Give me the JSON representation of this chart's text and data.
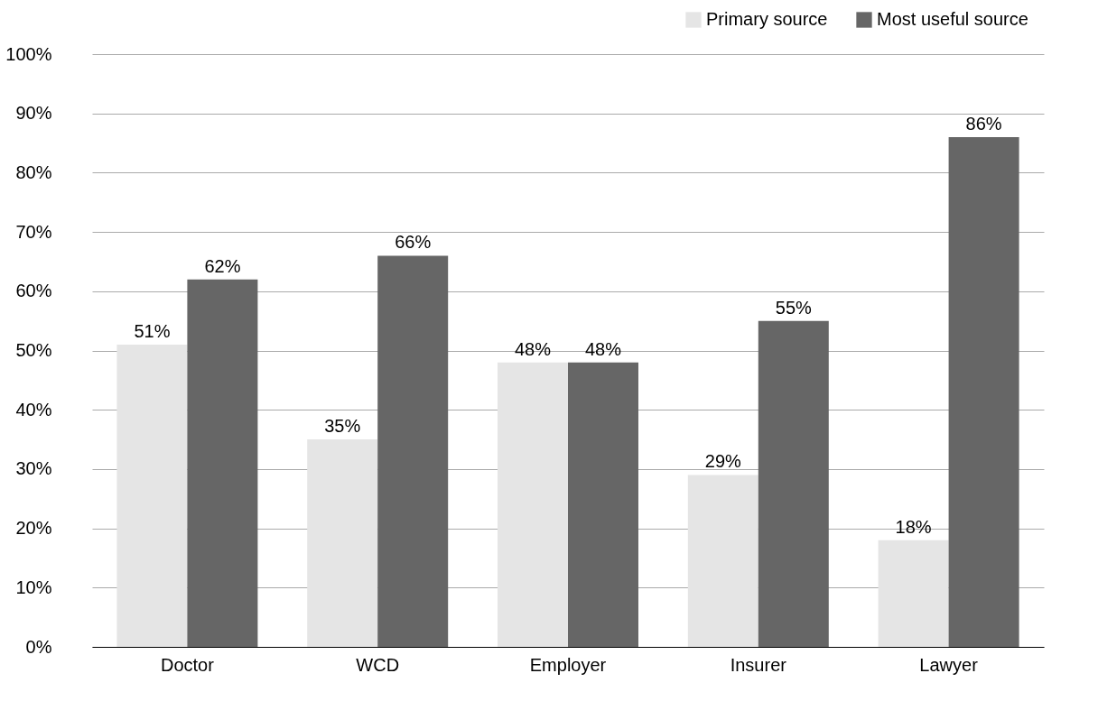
{
  "chart_data": {
    "type": "bar",
    "categories": [
      "Doctor",
      "WCD",
      "Employer",
      "Insurer",
      "Lawyer"
    ],
    "series": [
      {
        "name": "Primary source",
        "color": "#e5e5e5",
        "values": [
          51,
          35,
          48,
          29,
          18
        ],
        "value_labels": [
          "51%",
          "35%",
          "48%",
          "29%",
          "18%"
        ]
      },
      {
        "name": "Most useful source",
        "color": "#666666",
        "values": [
          62,
          66,
          48,
          55,
          86
        ],
        "value_labels": [
          "62%",
          "66%",
          "48%",
          "55%",
          "86%"
        ]
      }
    ],
    "ylim": [
      0,
      100
    ],
    "yticks": [
      {
        "value": 0,
        "label": "0%"
      },
      {
        "value": 10,
        "label": "10%"
      },
      {
        "value": 20,
        "label": "20%"
      },
      {
        "value": 30,
        "label": "30%"
      },
      {
        "value": 40,
        "label": "40%"
      },
      {
        "value": 50,
        "label": "50%"
      },
      {
        "value": 60,
        "label": "60%"
      },
      {
        "value": 70,
        "label": "70%"
      },
      {
        "value": 80,
        "label": "80%"
      },
      {
        "value": 90,
        "label": "90%"
      },
      {
        "value": 100,
        "label": "100%"
      }
    ],
    "grid": "y",
    "legend": "top right"
  }
}
